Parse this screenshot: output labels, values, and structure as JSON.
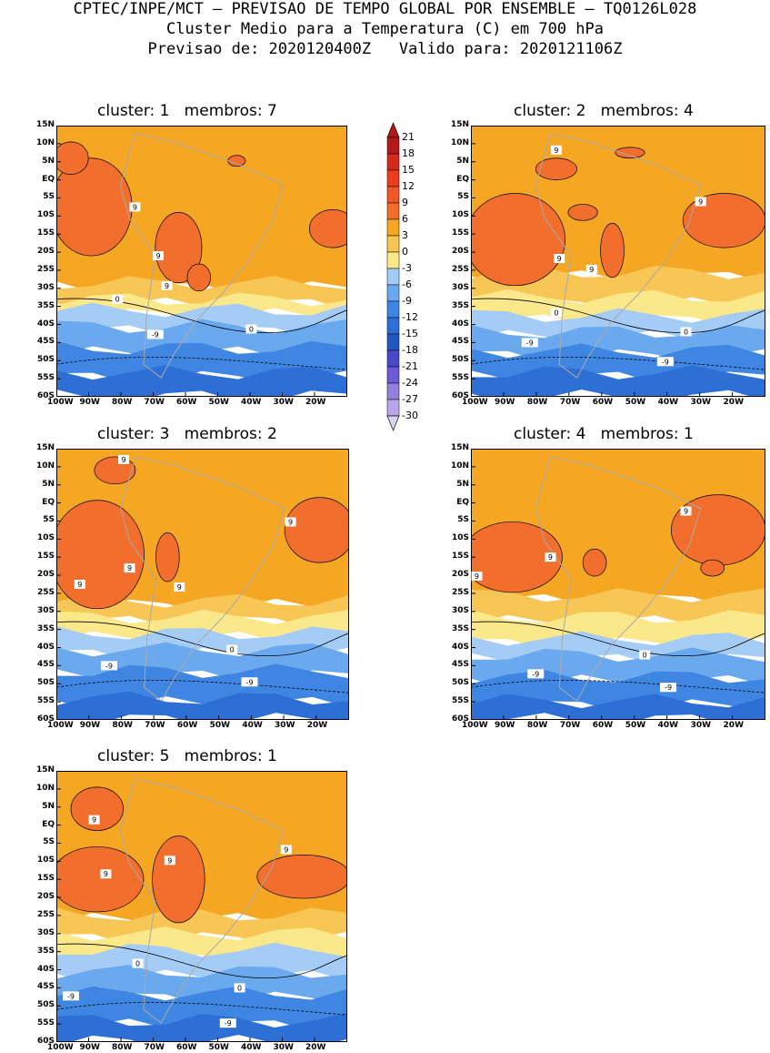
{
  "header": {
    "line1": "CPTEC/INPE/MCT – PREVISAO DE TEMPO GLOBAL POR ENSEMBLE – TQ0126L028",
    "line2": "Cluster Medio para a Temperatura (C) em 700 hPa",
    "line3": "Previsao de: 2020120400Z   Valido para: 2020121106Z"
  },
  "lat_labels": [
    "15N",
    "10N",
    "5N",
    "EQ",
    "5S",
    "10S",
    "15S",
    "20S",
    "25S",
    "30S",
    "35S",
    "40S",
    "45S",
    "50S",
    "55S",
    "60S"
  ],
  "lon_labels": [
    "100W",
    "90W",
    "80W",
    "70W",
    "60W",
    "50W",
    "40W",
    "30W",
    "20W"
  ],
  "colorbar": {
    "levels": [
      "21",
      "18",
      "15",
      "12",
      "9",
      "6",
      "3",
      "0",
      "-3",
      "-6",
      "-9",
      "-12",
      "-15",
      "-18",
      "-21",
      "-24",
      "-27",
      "-30"
    ],
    "colors": [
      "#b3191b",
      "#d42a1e",
      "#ec3d20",
      "#f2572a",
      "#f26e2c",
      "#f5a623",
      "#f7c655",
      "#fbe88a",
      "#a5ccf5",
      "#6aa9ee",
      "#3f86e2",
      "#2e6fd6",
      "#2257c3",
      "#4a48c8",
      "#6c5bd6",
      "#9480df",
      "#b8a7e8",
      "#dcd3f2"
    ]
  },
  "colors": {
    "warm_red": "#f26e2c",
    "orange": "#f5a623",
    "light_orange": "#f7c655",
    "yellow": "#fbe88a",
    "light_blue": "#a5ccf5",
    "mid_blue": "#6aa9ee",
    "blue": "#3f86e2",
    "dark_blue": "#2e6fd6"
  },
  "panels": [
    {
      "title": "cluster: 1   membros: 7",
      "contour_labels": [
        "9",
        "9",
        "9",
        "0",
        "0",
        "-9"
      ]
    },
    {
      "title": "cluster: 2   membros: 4",
      "contour_labels": [
        "9",
        "9",
        "9",
        "9",
        "0",
        "0",
        "-9",
        "-9"
      ]
    },
    {
      "title": "cluster: 3   membros: 2",
      "contour_labels": [
        "9",
        "9",
        "9",
        "9",
        "9",
        "0",
        "-9",
        "-9"
      ]
    },
    {
      "title": "cluster: 4   membros: 1",
      "contour_labels": [
        "9",
        "9",
        "9",
        "0",
        "-9",
        "-9"
      ]
    },
    {
      "title": "cluster: 5   membros: 1",
      "contour_labels": [
        "9",
        "9",
        "9",
        "9",
        "0",
        "0",
        "-9",
        "-9"
      ]
    }
  ]
}
